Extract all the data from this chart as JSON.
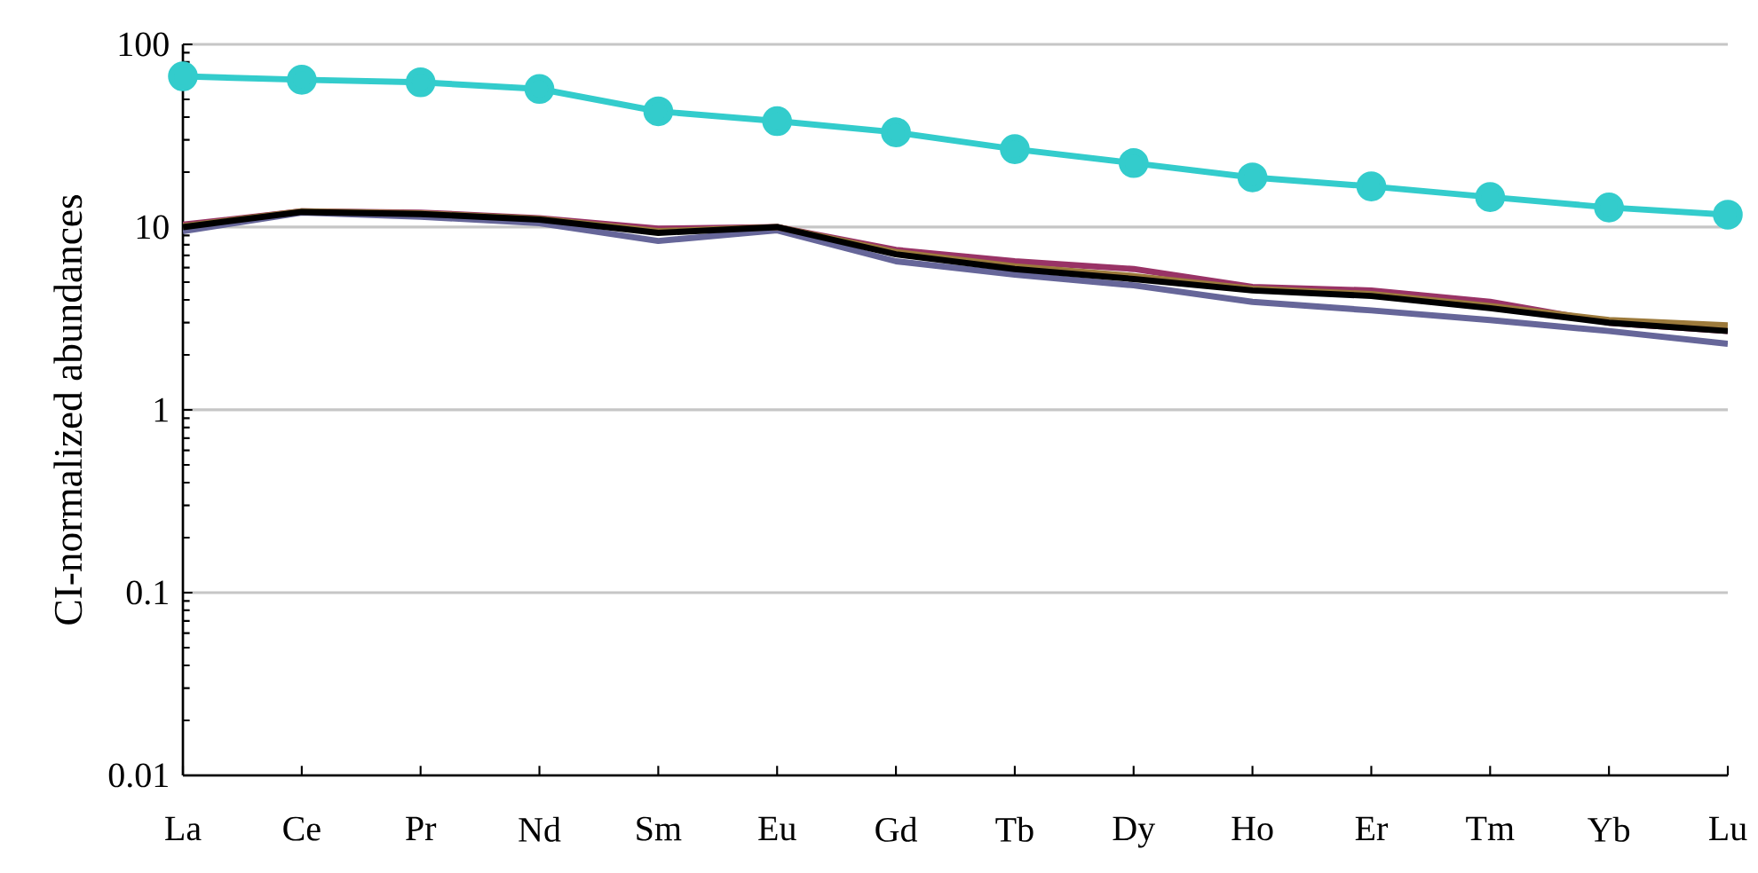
{
  "chart_data": {
    "type": "line",
    "ylabel": "CI-normalized abundances",
    "categories": [
      "La",
      "Ce",
      "Pr",
      "Nd",
      "Sm",
      "Eu",
      "Gd",
      "Tb",
      "Dy",
      "Ho",
      "Er",
      "Tm",
      "Yb",
      "Lu"
    ],
    "log": "y",
    "ylim": [
      0.01,
      100
    ],
    "yticks": [
      {
        "value": 0.01,
        "label": "0.01"
      },
      {
        "value": 0.1,
        "label": "0.1"
      },
      1,
      10,
      100
    ],
    "grid": "y",
    "series": [
      {
        "color": "#666699",
        "marker": "none",
        "values": [
          9.5,
          12,
          11.4,
          10.5,
          8.4,
          9.6,
          6.5,
          5.5,
          4.8,
          3.9,
          3.5,
          3.1,
          2.7,
          2.3
        ]
      },
      {
        "color": "#993366",
        "marker": "none",
        "values": [
          10.3,
          12.2,
          12,
          11.2,
          9.8,
          10,
          7.5,
          6.5,
          5.9,
          4.7,
          4.5,
          3.9,
          3.0,
          2.7
        ]
      },
      {
        "color": "#9c7a3c",
        "marker": "none",
        "values": [
          10.1,
          12.2,
          11.9,
          11.1,
          9.5,
          10,
          7.3,
          6.1,
          5.4,
          4.6,
          4.3,
          3.7,
          3.1,
          2.9
        ]
      },
      {
        "color": "#000000",
        "marker": "none",
        "values": [
          10,
          12.1,
          11.8,
          11,
          9.3,
          10,
          7.1,
          5.9,
          5.2,
          4.5,
          4.2,
          3.6,
          3.0,
          2.7
        ]
      },
      {
        "color": "#33cccc",
        "marker": "circle",
        "values": [
          66.8,
          64,
          62,
          57,
          43,
          38,
          33,
          26.7,
          22.4,
          18.7,
          16.7,
          14.6,
          12.8,
          11.7
        ]
      }
    ]
  }
}
